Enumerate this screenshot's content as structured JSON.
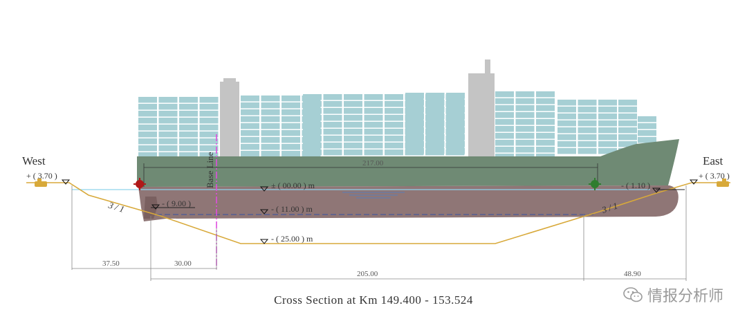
{
  "labels": {
    "west": "West",
    "east": "East",
    "base_line": "Base Line",
    "slope_left": "3 / 1",
    "slope_right": "3 / 1"
  },
  "levels": {
    "bank_west": "+ ( 3.70 )",
    "bank_east": "+ ( 3.70 )",
    "water": "± ( 00.00 )  m",
    "draft": "- ( 11.00 )  m",
    "bottom": "- ( 25.00 )  m",
    "berm_west": "- ( 9.00 )",
    "berm_east": "- ( 1.10 )"
  },
  "dimensions": {
    "ship_length": "217.00",
    "west_offset": "37.50",
    "baseline_offset": "30.00",
    "channel_width": "205.00",
    "east_offset": "48.90"
  },
  "caption": "Cross Section  at  Km  149.400 - 153.524",
  "watermark": "情报分析师",
  "colors": {
    "hull_upper": "#6f8a74",
    "hull_lower": "#8f7676",
    "containers": "#a6cfd4",
    "superstructure": "#c4c4c4",
    "channel_line": "#d8a93a",
    "base_line": "#e04de0",
    "water_line": "#8fd3ec"
  }
}
